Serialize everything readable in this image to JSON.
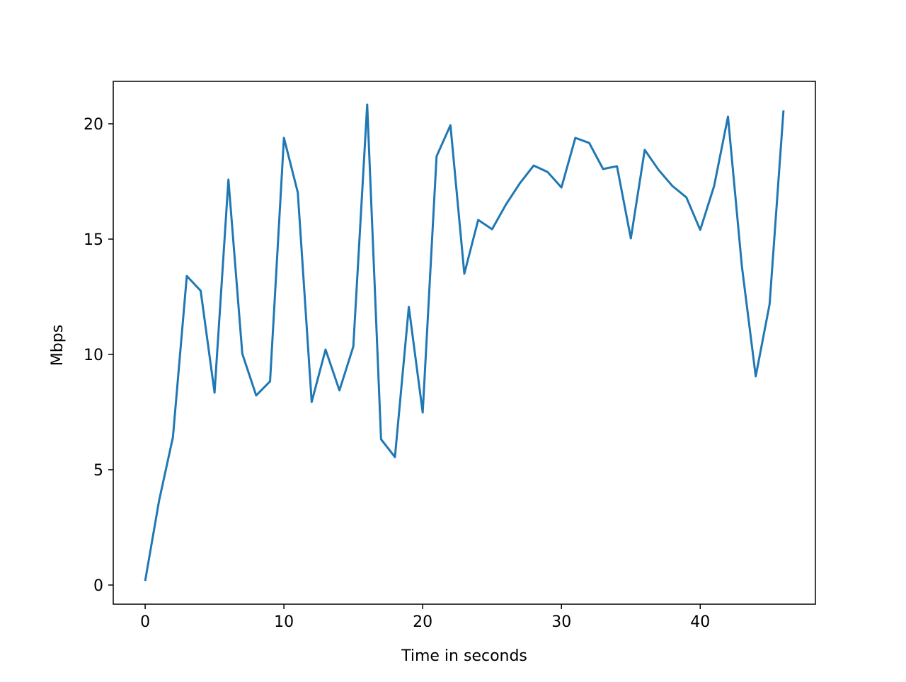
{
  "chart_data": {
    "type": "line",
    "xlabel": "Time in seconds",
    "ylabel": "Mbps",
    "x": [
      0,
      1,
      2,
      3,
      4,
      5,
      6,
      7,
      8,
      9,
      10,
      11,
      12,
      13,
      14,
      15,
      16,
      17,
      18,
      19,
      20,
      21,
      22,
      23,
      24,
      25,
      26,
      27,
      28,
      29,
      30,
      31,
      32,
      33,
      34,
      35,
      36,
      37,
      38,
      39,
      40,
      41,
      42,
      43,
      44,
      45,
      46
    ],
    "series": [
      {
        "color": "#1f77b4",
        "values": [
          0.18,
          3.65,
          6.41,
          13.4,
          12.76,
          8.34,
          17.58,
          10.03,
          8.22,
          8.83,
          19.39,
          17.02,
          7.94,
          10.21,
          8.44,
          10.34,
          20.83,
          6.32,
          5.55,
          12.06,
          7.48,
          18.59,
          19.94,
          13.5,
          15.83,
          15.43,
          16.5,
          17.42,
          18.19,
          17.91,
          17.24,
          19.39,
          19.17,
          18.04,
          18.16,
          15.03,
          18.87,
          18.0,
          17.3,
          16.81,
          15.4,
          17.3,
          20.31,
          13.83,
          9.05,
          12.18,
          20.58
        ]
      }
    ],
    "xlim": [
      -2.3,
      48.3
    ],
    "xticks": [
      0,
      10,
      20,
      30,
      40
    ],
    "ylim": [
      -0.83,
      21.84
    ],
    "yticks": [
      0,
      5,
      10,
      15,
      20
    ],
    "grid": false
  }
}
